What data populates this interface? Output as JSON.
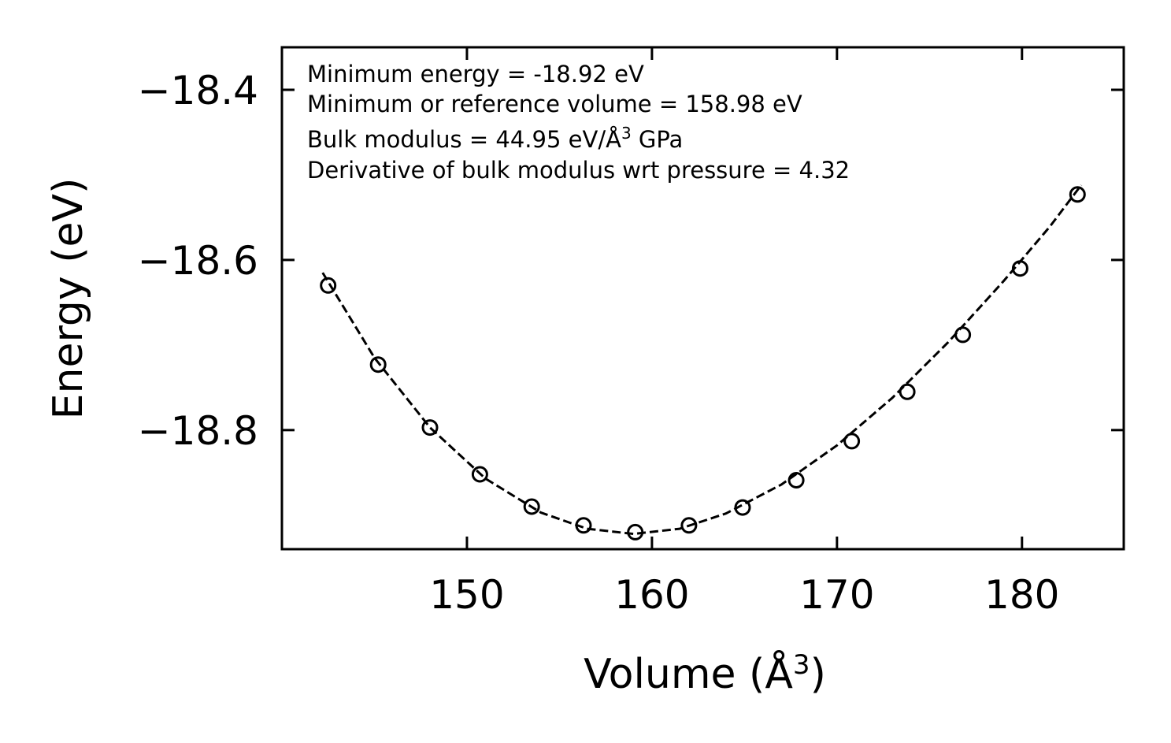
{
  "chart_data": {
    "type": "scatter",
    "title": "",
    "xlabel": "Volume (Å",
    "xlabel_sup": "3",
    "xlabel_close": ")",
    "ylabel": "Energy (eV)",
    "xlim": [
      140,
      185.5
    ],
    "ylim": [
      -18.94,
      -18.35
    ],
    "xticks": [
      150,
      160,
      170,
      180
    ],
    "xtick_labels": [
      "150",
      "160",
      "170",
      "180"
    ],
    "yticks": [
      -18.4,
      -18.6,
      -18.8
    ],
    "ytick_labels": [
      "−18.4",
      "−18.6",
      "−18.8"
    ],
    "grid": false,
    "series": [
      {
        "name": "data",
        "marker": "open-circle",
        "x": [
          142.5,
          145.2,
          148.0,
          150.7,
          153.5,
          156.3,
          159.1,
          162.0,
          164.9,
          167.8,
          170.8,
          173.8,
          176.8,
          179.9,
          183.0
        ],
        "y": [
          -18.63,
          -18.723,
          -18.797,
          -18.852,
          -18.89,
          -18.912,
          -18.92,
          -18.912,
          -18.891,
          -18.859,
          -18.813,
          -18.755,
          -18.688,
          -18.61,
          -18.523
        ]
      },
      {
        "name": "fit",
        "style": "dashed",
        "color": "#000000",
        "x": [
          142.2,
          145.0,
          148.0,
          151.0,
          154.0,
          156.5,
          159.0,
          161.5,
          164.0,
          167.0,
          170.0,
          173.0,
          176.0,
          179.0,
          181.5,
          183.2
        ],
        "y": [
          -18.615,
          -18.715,
          -18.797,
          -18.857,
          -18.897,
          -18.916,
          -18.922,
          -18.916,
          -18.898,
          -18.864,
          -18.818,
          -18.762,
          -18.697,
          -18.625,
          -18.561,
          -18.512
        ]
      }
    ],
    "annotations": [
      "Minimum energy = -18.92 eV",
      "Minimum or reference volume = 158.98 eV",
      "Bulk modulus = 44.95 eV/Å",
      "Derivative of bulk modulus wrt pressure = 4.32"
    ],
    "annotation_bulk_sup": "3",
    "annotation_bulk_suffix": " GPa"
  }
}
